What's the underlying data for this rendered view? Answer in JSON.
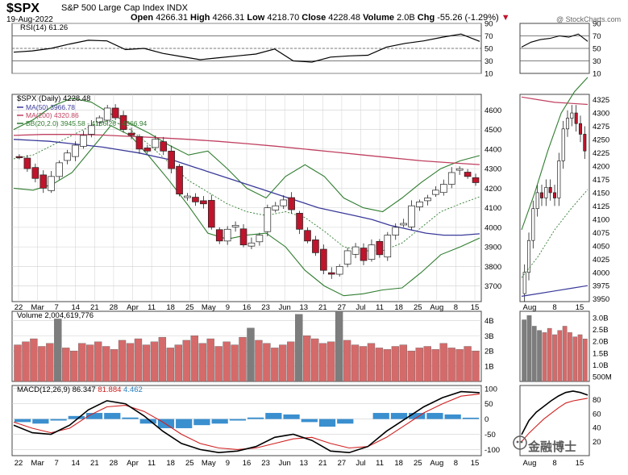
{
  "header": {
    "symbol": "$SPX",
    "name": "S&P 500 Large Cap Index",
    "exchange": "INDX",
    "date": "19-Aug-2022",
    "open_label": "Open",
    "open": "4266.31",
    "high_label": "High",
    "high": "4266.31",
    "low_label": "Low",
    "low": "4218.70",
    "close_label": "Close",
    "close": "4228.48",
    "volume_label": "Volume",
    "volume": "2.0B",
    "chg_label": "Chg",
    "chg": "-55.26 (-1.29%)",
    "credit": "@ StockCharts.com"
  },
  "watermark": "金融博士",
  "colors": {
    "up": "#ffffff",
    "down": "#c0142c",
    "ma50": "#3a3a9a",
    "ma200": "#c04060",
    "bb": "#2f7d2f",
    "rsi": "#000000",
    "macd": "#000000",
    "signal": "#d02020",
    "hist": "#3a8fcf",
    "vol_up": "#7d7d7d",
    "vol_down": "#d56a6a",
    "grid": "#cfcfcf"
  },
  "chart_data": [
    {
      "panel": "rsi",
      "type": "line",
      "label": "RSI(14) 61.26",
      "yticks": [
        "90",
        "70",
        "50",
        "30",
        "10"
      ],
      "ylim": [
        10,
        90
      ],
      "levels": [
        30,
        50,
        70
      ],
      "x": [
        "Feb 22",
        "Mar 7",
        "Mar 14",
        "Mar 21",
        "Mar 28",
        "Apr 4",
        "Apr 11",
        "Apr 18",
        "Apr 25",
        "May 2",
        "May 9",
        "May 16",
        "May 23",
        "May 30",
        "Jun 6",
        "Jun 13",
        "Jun 21",
        "Jun 27",
        "Jul 5",
        "Jul 11",
        "Jul 18",
        "Jul 25",
        "Aug 1",
        "Aug 8",
        "Aug 15",
        "Aug 19"
      ],
      "values": [
        44,
        46,
        50,
        57,
        63,
        62,
        48,
        50,
        42,
        37,
        32,
        35,
        38,
        41,
        49,
        30,
        28,
        36,
        38,
        39,
        52,
        58,
        62,
        68,
        73,
        61.26
      ]
    },
    {
      "panel": "price",
      "type": "candlestick",
      "title": "$SPX (Daily) 4228.48",
      "legend": [
        "MA(50) 3966.78",
        "MA(200) 4320.86",
        "BB(20,2.0) 3945.58 - 4156.26 - 4366.94"
      ],
      "yticks": [
        "4600",
        "4500",
        "4400",
        "4300",
        "4200",
        "4100",
        "4000",
        "3900",
        "3800",
        "3700"
      ],
      "ylim": [
        3620,
        4680
      ],
      "xticks": [
        "22",
        "Mar",
        "7",
        "14",
        "21",
        "28",
        "Apr",
        "11",
        "18",
        "25",
        "May",
        "9",
        "16",
        "23",
        "Jun",
        "13",
        "21",
        "27",
        "Jul",
        "11",
        "18",
        "25",
        "Aug",
        "8",
        "15"
      ],
      "close": [
        4360,
        4300,
        4250,
        4200,
        4260,
        4330,
        4380,
        4420,
        4470,
        4520,
        4560,
        4610,
        4560,
        4500,
        4470,
        4400,
        4390,
        4450,
        4390,
        4300,
        4170,
        4160,
        4130,
        4120,
        4000,
        3930,
        3990,
        4010,
        3910,
        3920,
        3960,
        4100,
        4110,
        4140,
        4090,
        3990,
        3930,
        3870,
        3780,
        3760,
        3800,
        3880,
        3900,
        3830,
        3910,
        3860,
        3960,
        4000,
        4020,
        4110,
        4130,
        4150,
        4190,
        4220,
        4280,
        4300,
        4260,
        4228.48
      ],
      "ma50": [
        4450,
        4445,
        4440,
        4430,
        4420,
        4410,
        4395,
        4380,
        4360,
        4340,
        4310,
        4280,
        4250,
        4220,
        4190,
        4160,
        4130,
        4100,
        4080,
        4060,
        4040,
        4010,
        3990,
        3970,
        3960,
        3960,
        3966.78
      ],
      "ma200": [
        4470,
        4475,
        4475,
        4472,
        4465,
        4458,
        4450,
        4440,
        4428,
        4415,
        4400,
        4385,
        4370,
        4355,
        4340,
        4330,
        4320.86
      ],
      "bb_upper": [
        4500,
        4550,
        4620,
        4660,
        4640,
        4580,
        4530,
        4480,
        4420,
        4370,
        4390,
        4300,
        4200,
        4150,
        4260,
        4320,
        4260,
        4150,
        4100,
        4080,
        4150,
        4230,
        4300,
        4340,
        4366.94
      ],
      "bb_mid": [
        4350,
        4370,
        4420,
        4470,
        4520,
        4550,
        4500,
        4420,
        4330,
        4240,
        4180,
        4120,
        4080,
        4060,
        4080,
        4050,
        3980,
        3900,
        3880,
        3880,
        3920,
        4000,
        4080,
        4120,
        4156.26
      ],
      "bb_lower": [
        4200,
        4190,
        4220,
        4280,
        4400,
        4520,
        4470,
        4360,
        4240,
        4110,
        3970,
        3940,
        3960,
        3970,
        3900,
        3780,
        3700,
        3650,
        3660,
        3680,
        3690,
        3770,
        3860,
        3900,
        3945.58
      ]
    },
    {
      "panel": "volume",
      "type": "bar",
      "title": "Volume 2,004,619,776",
      "yticks": [
        "4B",
        "3B",
        "2B",
        "1B"
      ],
      "ylim": [
        0,
        4.6
      ],
      "unit": "B",
      "values": [
        2.4,
        2.6,
        2.8,
        2.3,
        2.5,
        4.1,
        2.2,
        2.0,
        2.5,
        2.4,
        2.6,
        2.3,
        2.1,
        2.7,
        2.5,
        2.8,
        2.4,
        2.6,
        2.9,
        2.2,
        2.4,
        2.7,
        3.0,
        2.5,
        2.8,
        2.3,
        2.6,
        2.4,
        2.9,
        3.5,
        2.7,
        2.5,
        2.2,
        2.4,
        2.6,
        4.4,
        3.0,
        2.8,
        2.5,
        2.6,
        4.6,
        2.7,
        2.4,
        2.3,
        2.5,
        2.2,
        2.1,
        2.3,
        2.4,
        2.0,
        2.2,
        2.3,
        2.1,
        2.5,
        2.2,
        2.1,
        2.3,
        2.0
      ]
    },
    {
      "panel": "macd",
      "type": "line",
      "title": "MACD(12,26,9)",
      "macd_value": "86.347",
      "signal_value": "81.884",
      "hist_value": "4.462",
      "yticks": [
        "100",
        "50",
        "0",
        "-50",
        "-100"
      ],
      "ylim": [
        -120,
        110
      ],
      "macd": [
        -20,
        -45,
        -50,
        -20,
        30,
        60,
        50,
        10,
        -40,
        -80,
        -100,
        -110,
        -105,
        -90,
        -60,
        -50,
        -70,
        -105,
        -110,
        -90,
        -40,
        0,
        40,
        70,
        90,
        86.347
      ],
      "signal": [
        -10,
        -30,
        -45,
        -30,
        10,
        40,
        45,
        25,
        -10,
        -50,
        -80,
        -95,
        -100,
        -95,
        -80,
        -65,
        -60,
        -80,
        -95,
        -90,
        -60,
        -20,
        20,
        50,
        75,
        81.884
      ],
      "histogram": [
        -10,
        -15,
        -5,
        10,
        20,
        20,
        5,
        -15,
        -30,
        -30,
        -20,
        -15,
        -5,
        5,
        20,
        15,
        -10,
        -25,
        -15,
        0,
        20,
        20,
        20,
        20,
        15,
        4.462
      ]
    },
    {
      "panel": "rsi-zoom",
      "type": "line",
      "yticks": [
        "90",
        "70",
        "50",
        "30",
        "10"
      ],
      "values": [
        52,
        60,
        64,
        66,
        70,
        68,
        73,
        61.26
      ]
    },
    {
      "panel": "price-zoom",
      "type": "candlestick",
      "yticks": [
        "4325",
        "4300",
        "4275",
        "4250",
        "4225",
        "4200",
        "4175",
        "4150",
        "4125",
        "4100",
        "4075",
        "4050",
        "4025",
        "4000",
        "3975",
        "3950"
      ],
      "ylim": [
        3945,
        4335
      ],
      "xticks": [
        "Aug",
        "8",
        "15"
      ],
      "close": [
        4000,
        4060,
        4120,
        4150,
        4140,
        4160,
        4150,
        4140,
        4210,
        4270,
        4290,
        4300,
        4280,
        4260,
        4228.48
      ]
    },
    {
      "panel": "volume-zoom",
      "type": "bar",
      "yticks": [
        "3.0B",
        "2.5B",
        "2.0B",
        "1.5B",
        "1.0B",
        "500M"
      ],
      "values": [
        2.9,
        3.1,
        2.6,
        2.4,
        2.3,
        2.5,
        2.2,
        2.4,
        2.6,
        2.3,
        2.1,
        2.2,
        2.0
      ]
    },
    {
      "panel": "macd-zoom",
      "type": "line",
      "yticks": [
        "80",
        "60",
        "40",
        "20"
      ],
      "macd": [
        30,
        50,
        62,
        70,
        78,
        85,
        90,
        92,
        90,
        86.347
      ],
      "signal": [
        20,
        32,
        42,
        52,
        60,
        68,
        75,
        78,
        80,
        81.884
      ]
    }
  ]
}
